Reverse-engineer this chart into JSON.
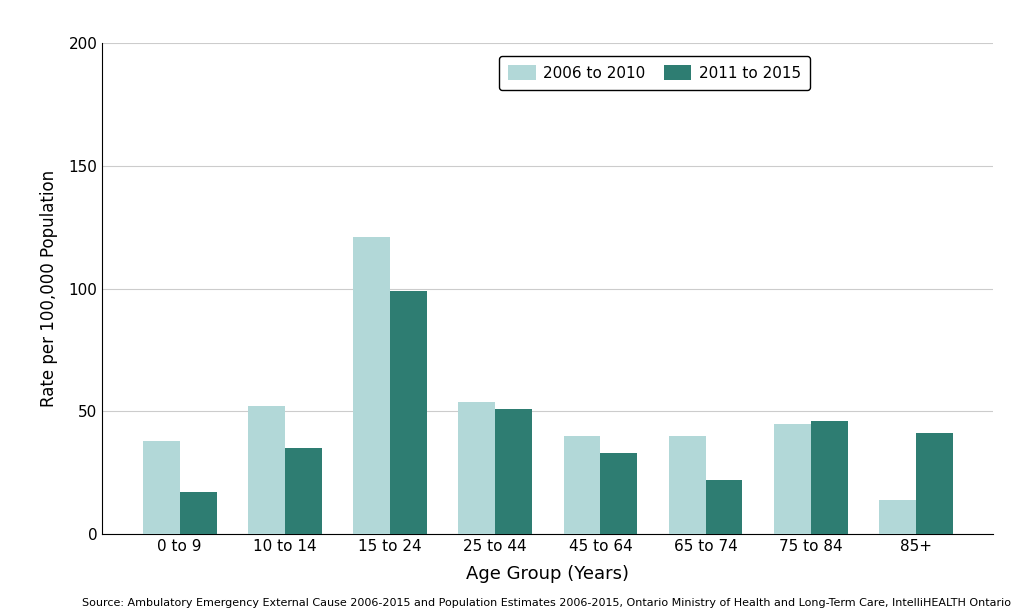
{
  "categories": [
    "0 to 9",
    "10 to 14",
    "15 to 24",
    "25 to 44",
    "45 to 64",
    "65 to 74",
    "75 to 84",
    "85+"
  ],
  "values_2006_2010": [
    38,
    52,
    121,
    54,
    40,
    40,
    45,
    14
  ],
  "values_2011_2015": [
    17,
    35,
    99,
    51,
    33,
    22,
    46,
    41
  ],
  "color_2006_2010": "#b2d8d8",
  "color_2011_2015": "#2e7d72",
  "xlabel": "Age Group (Years)",
  "ylabel": "Rate per 100,000 Population",
  "legend_label_1": "2006 to 2010",
  "legend_label_2": "2011 to 2015",
  "ylim": [
    0,
    200
  ],
  "yticks": [
    0,
    50,
    100,
    150,
    200
  ],
  "source_text": "Source: Ambulatory Emergency External Cause 2006-2015 and Population Estimates 2006-2015, Ontario Ministry of Health and Long-Term Care, IntelliHEALTH Ontario",
  "bar_width": 0.35,
  "background_color": "#ffffff",
  "grid_color": "#cccccc"
}
